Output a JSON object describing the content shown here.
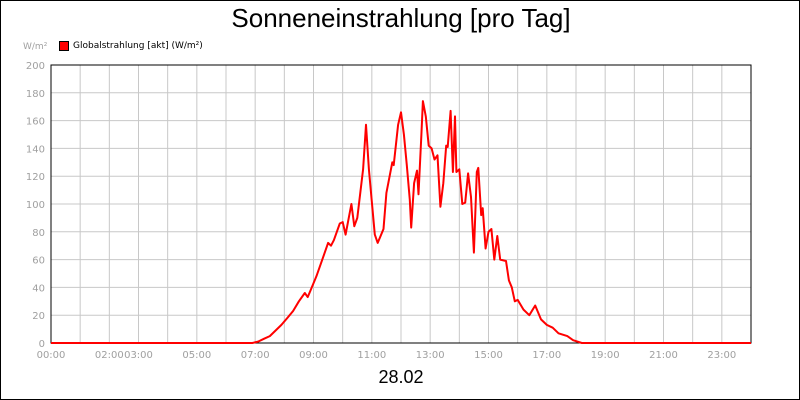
{
  "chart_data": {
    "type": "line",
    "title": "Sonneneinstrahlung [pro Tag]",
    "ylabel": "W/m²",
    "xlabel": "28.02",
    "ylim": [
      0,
      200
    ],
    "xlim_hours": [
      0,
      24
    ],
    "yticks": [
      0,
      20,
      40,
      60,
      80,
      100,
      120,
      140,
      160,
      180,
      200
    ],
    "xticks": [
      {
        "label": "00:00",
        "hour": 0
      },
      {
        "label": "02:00",
        "hour": 2
      },
      {
        "label": "03:00",
        "hour": 3
      },
      {
        "label": "05:00",
        "hour": 5
      },
      {
        "label": "07:00",
        "hour": 7
      },
      {
        "label": "09:00",
        "hour": 9
      },
      {
        "label": "11:00",
        "hour": 11
      },
      {
        "label": "13:00",
        "hour": 13
      },
      {
        "label": "15:00",
        "hour": 15
      },
      {
        "label": "17:00",
        "hour": 17
      },
      {
        "label": "19:00",
        "hour": 19
      },
      {
        "label": "21:00",
        "hour": 21
      },
      {
        "label": "23:00",
        "hour": 23
      }
    ],
    "grid": true,
    "legend_position": "top-left",
    "series": [
      {
        "name": "Globalstrahlung [akt] (W/m²)",
        "color": "#ff0000",
        "points": [
          [
            0,
            0
          ],
          [
            6.9,
            0
          ],
          [
            7.1,
            1
          ],
          [
            7.3,
            3
          ],
          [
            7.5,
            5
          ],
          [
            7.7,
            9
          ],
          [
            7.9,
            13
          ],
          [
            8.1,
            18
          ],
          [
            8.3,
            23
          ],
          [
            8.5,
            30
          ],
          [
            8.7,
            36
          ],
          [
            8.8,
            33
          ],
          [
            8.9,
            38
          ],
          [
            9.1,
            48
          ],
          [
            9.3,
            60
          ],
          [
            9.5,
            72
          ],
          [
            9.6,
            70
          ],
          [
            9.7,
            74
          ],
          [
            9.9,
            86
          ],
          [
            10.0,
            87
          ],
          [
            10.1,
            78
          ],
          [
            10.3,
            100
          ],
          [
            10.4,
            84
          ],
          [
            10.5,
            90
          ],
          [
            10.7,
            125
          ],
          [
            10.8,
            157
          ],
          [
            10.9,
            125
          ],
          [
            11.1,
            78
          ],
          [
            11.2,
            72
          ],
          [
            11.4,
            82
          ],
          [
            11.5,
            108
          ],
          [
            11.7,
            130
          ],
          [
            11.75,
            128
          ],
          [
            11.9,
            157
          ],
          [
            12.0,
            166
          ],
          [
            12.1,
            150
          ],
          [
            12.2,
            128
          ],
          [
            12.3,
            103
          ],
          [
            12.35,
            83
          ],
          [
            12.45,
            115
          ],
          [
            12.55,
            124
          ],
          [
            12.6,
            107
          ],
          [
            12.7,
            150
          ],
          [
            12.75,
            174
          ],
          [
            12.85,
            163
          ],
          [
            12.95,
            142
          ],
          [
            13.05,
            140
          ],
          [
            13.15,
            132
          ],
          [
            13.25,
            135
          ],
          [
            13.35,
            98
          ],
          [
            13.45,
            115
          ],
          [
            13.55,
            142
          ],
          [
            13.6,
            141
          ],
          [
            13.7,
            167
          ],
          [
            13.78,
            123
          ],
          [
            13.85,
            163
          ],
          [
            13.9,
            123
          ],
          [
            14.0,
            125
          ],
          [
            14.1,
            100
          ],
          [
            14.2,
            101
          ],
          [
            14.3,
            122
          ],
          [
            14.4,
            105
          ],
          [
            14.5,
            65
          ],
          [
            14.6,
            123
          ],
          [
            14.65,
            126
          ],
          [
            14.75,
            92
          ],
          [
            14.8,
            97
          ],
          [
            14.9,
            68
          ],
          [
            15.0,
            80
          ],
          [
            15.1,
            82
          ],
          [
            15.2,
            60
          ],
          [
            15.3,
            77
          ],
          [
            15.4,
            60
          ],
          [
            15.6,
            59
          ],
          [
            15.7,
            45
          ],
          [
            15.8,
            40
          ],
          [
            15.9,
            30
          ],
          [
            16.0,
            31
          ],
          [
            16.2,
            24
          ],
          [
            16.4,
            20
          ],
          [
            16.6,
            27
          ],
          [
            16.8,
            17
          ],
          [
            17.0,
            13
          ],
          [
            17.2,
            11
          ],
          [
            17.4,
            7
          ],
          [
            17.7,
            5
          ],
          [
            17.9,
            2
          ],
          [
            18.2,
            0
          ],
          [
            24.0,
            0
          ]
        ]
      }
    ]
  }
}
